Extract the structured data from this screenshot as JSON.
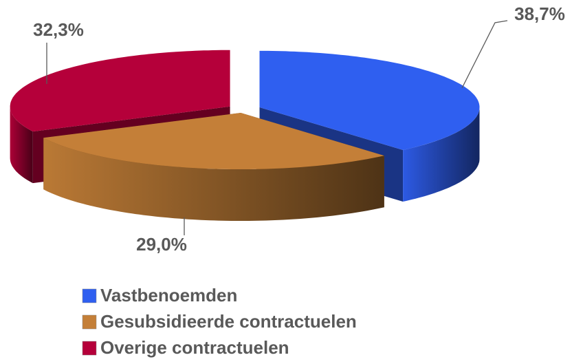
{
  "chart_data": {
    "type": "pie",
    "categories": [
      "Vastbenoemden",
      "Gesubsidieerde contractuelen",
      "Overige contractuelen"
    ],
    "values": [
      38.7,
      29.0,
      32.3
    ],
    "value_labels": [
      "38,7%",
      "29,0%",
      "32,3%"
    ],
    "colors": [
      "#2f5ff0",
      "#c47f38",
      "#b5003a"
    ]
  }
}
